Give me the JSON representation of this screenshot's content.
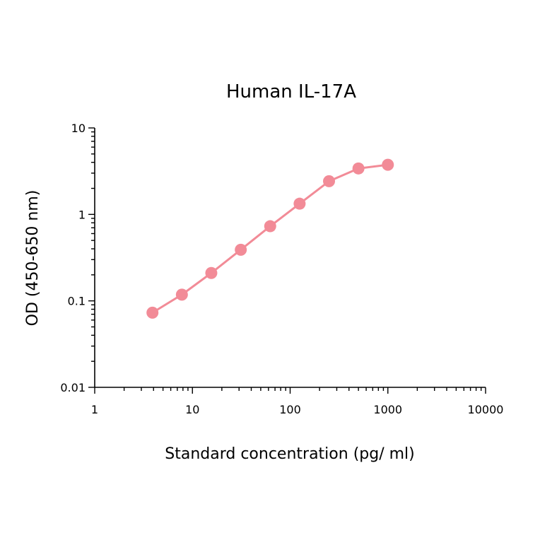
{
  "chart_data": {
    "type": "line",
    "title": "Human IL-17A",
    "xlabel": "Standard concentration (pg/ ml)",
    "ylabel": "OD (450-650 nm)",
    "xscale": "log",
    "yscale": "log",
    "xlim": [
      1,
      10000
    ],
    "ylim": [
      0.01,
      10
    ],
    "x_ticks": [
      "1",
      "10",
      "100",
      "1000",
      "10000"
    ],
    "y_ticks": [
      "0.01",
      "0.1",
      "1",
      "10"
    ],
    "grid": false,
    "legend": "none",
    "series": [
      {
        "color": "#f28b97",
        "x": [
          3.9,
          7.8,
          15.6,
          31.25,
          62.5,
          125,
          250,
          500,
          1000
        ],
        "y": [
          0.073,
          0.118,
          0.21,
          0.39,
          0.73,
          1.33,
          2.42,
          3.4,
          3.75
        ]
      }
    ]
  }
}
